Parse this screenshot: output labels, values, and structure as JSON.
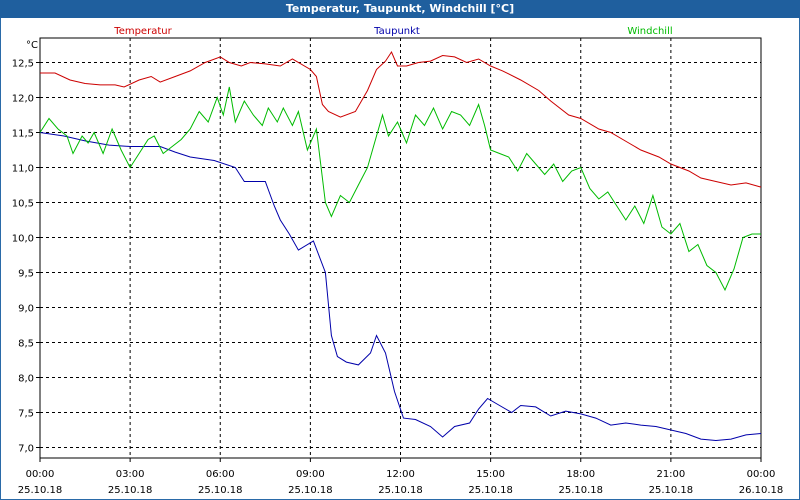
{
  "title": "Temperatur, Taupunkt, Windchill [°C]",
  "chart_data": {
    "type": "line",
    "ylabel": "°C",
    "ylim": [
      6.85,
      12.85
    ],
    "xlim": [
      0,
      24
    ],
    "y_ticks": [
      "12,5",
      "12,0",
      "11,5",
      "11,0",
      "10,5",
      "10,0",
      "9,5",
      "9,0",
      "8,5",
      "8,0",
      "7,5",
      "7,0"
    ],
    "y_tick_values": [
      12.5,
      12.0,
      11.5,
      11.0,
      10.5,
      10.0,
      9.5,
      9.0,
      8.5,
      8.0,
      7.5,
      7.0
    ],
    "x_ticks": [
      {
        "time": "00:00",
        "date": "25.10.18"
      },
      {
        "time": "03:00",
        "date": "25.10.18"
      },
      {
        "time": "06:00",
        "date": "25.10.18"
      },
      {
        "time": "09:00",
        "date": "25.10.18"
      },
      {
        "time": "12:00",
        "date": "25.10.18"
      },
      {
        "time": "15:00",
        "date": "25.10.18"
      },
      {
        "time": "18:00",
        "date": "25.10.18"
      },
      {
        "time": "21:00",
        "date": "25.10.18"
      },
      {
        "time": "00:00",
        "date": "26.10.18"
      }
    ],
    "grid": true,
    "series": [
      {
        "name": "Temperatur",
        "color": "#cc0000",
        "points": [
          [
            0,
            12.35
          ],
          [
            0.5,
            12.35
          ],
          [
            1,
            12.25
          ],
          [
            1.5,
            12.2
          ],
          [
            2,
            12.18
          ],
          [
            2.5,
            12.18
          ],
          [
            2.8,
            12.15
          ],
          [
            3.3,
            12.25
          ],
          [
            3.7,
            12.3
          ],
          [
            4,
            12.22
          ],
          [
            4.5,
            12.3
          ],
          [
            5,
            12.38
          ],
          [
            5.5,
            12.5
          ],
          [
            6,
            12.58
          ],
          [
            6.3,
            12.5
          ],
          [
            6.7,
            12.45
          ],
          [
            7,
            12.5
          ],
          [
            7.5,
            12.48
          ],
          [
            8,
            12.45
          ],
          [
            8.4,
            12.55
          ],
          [
            9,
            12.4
          ],
          [
            9.2,
            12.3
          ],
          [
            9.4,
            11.9
          ],
          [
            9.6,
            11.8
          ],
          [
            10,
            11.72
          ],
          [
            10.5,
            11.8
          ],
          [
            10.9,
            12.1
          ],
          [
            11.2,
            12.4
          ],
          [
            11.5,
            12.52
          ],
          [
            11.7,
            12.65
          ],
          [
            11.9,
            12.45
          ],
          [
            12.2,
            12.45
          ],
          [
            12.6,
            12.5
          ],
          [
            13,
            12.52
          ],
          [
            13.4,
            12.6
          ],
          [
            13.8,
            12.58
          ],
          [
            14.2,
            12.5
          ],
          [
            14.6,
            12.55
          ],
          [
            15,
            12.45
          ],
          [
            15.4,
            12.38
          ],
          [
            16,
            12.25
          ],
          [
            16.6,
            12.1
          ],
          [
            17,
            11.95
          ],
          [
            17.6,
            11.75
          ],
          [
            18,
            11.7
          ],
          [
            18.6,
            11.55
          ],
          [
            19,
            11.5
          ],
          [
            19.6,
            11.35
          ],
          [
            20,
            11.25
          ],
          [
            20.6,
            11.15
          ],
          [
            21,
            11.05
          ],
          [
            21.6,
            10.95
          ],
          [
            22,
            10.85
          ],
          [
            22.5,
            10.8
          ],
          [
            23,
            10.75
          ],
          [
            23.5,
            10.78
          ],
          [
            24,
            10.72
          ]
        ]
      },
      {
        "name": "Taupunkt",
        "color": "#0000aa",
        "points": [
          [
            0,
            11.5
          ],
          [
            0.8,
            11.45
          ],
          [
            1.5,
            11.38
          ],
          [
            2.3,
            11.32
          ],
          [
            3,
            11.3
          ],
          [
            4,
            11.3
          ],
          [
            4.5,
            11.22
          ],
          [
            5,
            11.15
          ],
          [
            5.8,
            11.1
          ],
          [
            6.5,
            11.0
          ],
          [
            6.8,
            10.8
          ],
          [
            7.5,
            10.8
          ],
          [
            7.8,
            10.45
          ],
          [
            8,
            10.25
          ],
          [
            8.3,
            10.05
          ],
          [
            8.6,
            9.82
          ],
          [
            9.1,
            9.95
          ],
          [
            9.5,
            9.5
          ],
          [
            9.7,
            8.6
          ],
          [
            9.9,
            8.3
          ],
          [
            10.2,
            8.22
          ],
          [
            10.6,
            8.18
          ],
          [
            11,
            8.35
          ],
          [
            11.2,
            8.6
          ],
          [
            11.5,
            8.35
          ],
          [
            11.8,
            7.8
          ],
          [
            12.1,
            7.42
          ],
          [
            12.5,
            7.4
          ],
          [
            13,
            7.3
          ],
          [
            13.4,
            7.15
          ],
          [
            13.8,
            7.3
          ],
          [
            14.3,
            7.35
          ],
          [
            14.6,
            7.55
          ],
          [
            14.9,
            7.7
          ],
          [
            15.3,
            7.6
          ],
          [
            15.7,
            7.5
          ],
          [
            16,
            7.6
          ],
          [
            16.5,
            7.58
          ],
          [
            17,
            7.45
          ],
          [
            17.5,
            7.52
          ],
          [
            18,
            7.48
          ],
          [
            18.5,
            7.42
          ],
          [
            19,
            7.32
          ],
          [
            19.5,
            7.35
          ],
          [
            20,
            7.32
          ],
          [
            20.5,
            7.3
          ],
          [
            21,
            7.25
          ],
          [
            21.5,
            7.2
          ],
          [
            22,
            7.12
          ],
          [
            22.5,
            7.1
          ],
          [
            23,
            7.12
          ],
          [
            23.5,
            7.18
          ],
          [
            24,
            7.2
          ]
        ]
      },
      {
        "name": "Windchill",
        "color": "#00bb00",
        "points": [
          [
            0,
            11.5
          ],
          [
            0.3,
            11.7
          ],
          [
            0.6,
            11.55
          ],
          [
            0.9,
            11.45
          ],
          [
            1.1,
            11.2
          ],
          [
            1.4,
            11.45
          ],
          [
            1.6,
            11.35
          ],
          [
            1.8,
            11.5
          ],
          [
            2.1,
            11.2
          ],
          [
            2.4,
            11.55
          ],
          [
            2.7,
            11.25
          ],
          [
            3,
            11.0
          ],
          [
            3.3,
            11.2
          ],
          [
            3.6,
            11.4
          ],
          [
            3.8,
            11.45
          ],
          [
            4.1,
            11.2
          ],
          [
            4.4,
            11.3
          ],
          [
            4.7,
            11.4
          ],
          [
            5,
            11.55
          ],
          [
            5.3,
            11.8
          ],
          [
            5.6,
            11.65
          ],
          [
            5.9,
            12.0
          ],
          [
            6.1,
            11.75
          ],
          [
            6.3,
            12.15
          ],
          [
            6.5,
            11.65
          ],
          [
            6.8,
            11.95
          ],
          [
            7.1,
            11.75
          ],
          [
            7.4,
            11.6
          ],
          [
            7.6,
            11.85
          ],
          [
            7.9,
            11.65
          ],
          [
            8.1,
            11.85
          ],
          [
            8.4,
            11.6
          ],
          [
            8.6,
            11.8
          ],
          [
            8.9,
            11.25
          ],
          [
            9.2,
            11.55
          ],
          [
            9.5,
            10.5
          ],
          [
            9.7,
            10.3
          ],
          [
            10,
            10.6
          ],
          [
            10.3,
            10.5
          ],
          [
            10.6,
            10.75
          ],
          [
            10.9,
            11.0
          ],
          [
            11.2,
            11.45
          ],
          [
            11.4,
            11.75
          ],
          [
            11.6,
            11.45
          ],
          [
            11.9,
            11.65
          ],
          [
            12.2,
            11.35
          ],
          [
            12.5,
            11.75
          ],
          [
            12.8,
            11.6
          ],
          [
            13.1,
            11.85
          ],
          [
            13.4,
            11.55
          ],
          [
            13.7,
            11.8
          ],
          [
            14.0,
            11.75
          ],
          [
            14.3,
            11.6
          ],
          [
            14.6,
            11.9
          ],
          [
            14.8,
            11.6
          ],
          [
            15.0,
            11.25
          ],
          [
            15.3,
            11.2
          ],
          [
            15.6,
            11.15
          ],
          [
            15.9,
            10.95
          ],
          [
            16.2,
            11.2
          ],
          [
            16.5,
            11.05
          ],
          [
            16.8,
            10.9
          ],
          [
            17.1,
            11.05
          ],
          [
            17.4,
            10.8
          ],
          [
            17.7,
            10.95
          ],
          [
            18,
            11.0
          ],
          [
            18.3,
            10.7
          ],
          [
            18.6,
            10.55
          ],
          [
            18.9,
            10.65
          ],
          [
            19.2,
            10.45
          ],
          [
            19.5,
            10.25
          ],
          [
            19.8,
            10.45
          ],
          [
            20.1,
            10.2
          ],
          [
            20.4,
            10.6
          ],
          [
            20.7,
            10.15
          ],
          [
            21,
            10.05
          ],
          [
            21.3,
            10.2
          ],
          [
            21.6,
            9.8
          ],
          [
            21.9,
            9.9
          ],
          [
            22.2,
            9.6
          ],
          [
            22.5,
            9.5
          ],
          [
            22.8,
            9.25
          ],
          [
            23.1,
            9.55
          ],
          [
            23.4,
            10.0
          ],
          [
            23.7,
            10.05
          ],
          [
            24,
            10.05
          ]
        ]
      }
    ]
  }
}
